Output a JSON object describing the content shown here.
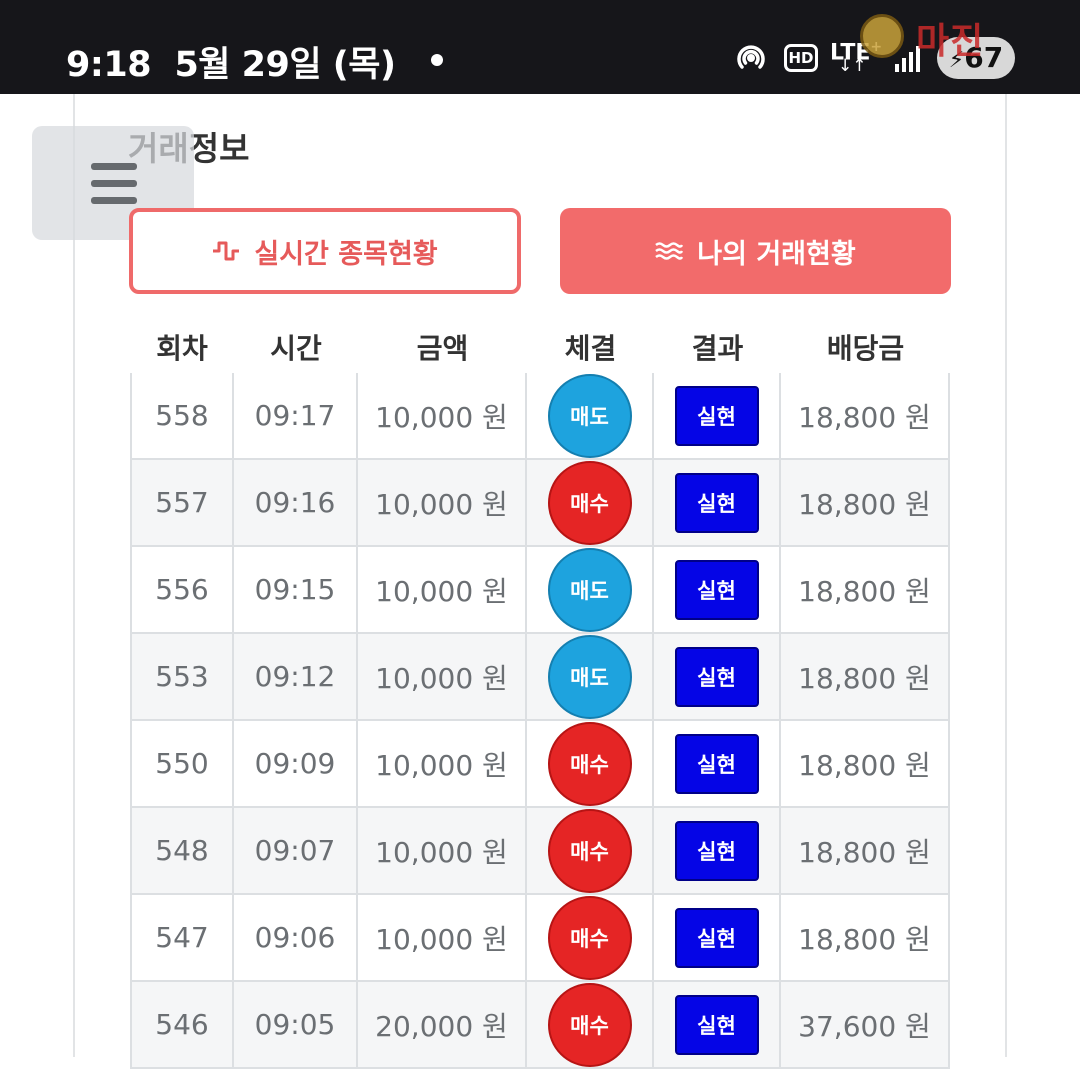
{
  "status_bar": {
    "time": "9:18",
    "date": "5월 29일 (목)",
    "network": "LTE",
    "network_plus": "+",
    "hd_label": "HD",
    "battery": "67"
  },
  "watermark": {
    "text": "마진"
  },
  "section": {
    "title": "거래정보"
  },
  "buttons": {
    "realtime_label": "실시간 종목현황",
    "my_trades_label": "나의 거래현황"
  },
  "table": {
    "headers": [
      "회차",
      "시간",
      "금액",
      "체결",
      "결과",
      "배당금"
    ],
    "rows": [
      {
        "round": "558",
        "time": "09:17",
        "amount": "10,000 원",
        "trade": "매도",
        "trade_type": "sell",
        "result": "실현",
        "payout": "18,800 원"
      },
      {
        "round": "557",
        "time": "09:16",
        "amount": "10,000 원",
        "trade": "매수",
        "trade_type": "buy",
        "result": "실현",
        "payout": "18,800 원"
      },
      {
        "round": "556",
        "time": "09:15",
        "amount": "10,000 원",
        "trade": "매도",
        "trade_type": "sell",
        "result": "실현",
        "payout": "18,800 원"
      },
      {
        "round": "553",
        "time": "09:12",
        "amount": "10,000 원",
        "trade": "매도",
        "trade_type": "sell",
        "result": "실현",
        "payout": "18,800 원"
      },
      {
        "round": "550",
        "time": "09:09",
        "amount": "10,000 원",
        "trade": "매수",
        "trade_type": "buy",
        "result": "실현",
        "payout": "18,800 원"
      },
      {
        "round": "548",
        "time": "09:07",
        "amount": "10,000 원",
        "trade": "매수",
        "trade_type": "buy",
        "result": "실현",
        "payout": "18,800 원"
      },
      {
        "round": "547",
        "time": "09:06",
        "amount": "10,000 원",
        "trade": "매수",
        "trade_type": "buy",
        "result": "실현",
        "payout": "18,800 원"
      },
      {
        "round": "546",
        "time": "09:05",
        "amount": "20,000 원",
        "trade": "매수",
        "trade_type": "buy",
        "result": "실현",
        "payout": "37,600 원"
      }
    ]
  },
  "colors": {
    "accent": "#f26b6b",
    "sell": "#1ea3de",
    "buy": "#e52525",
    "result": "#0505e6"
  }
}
